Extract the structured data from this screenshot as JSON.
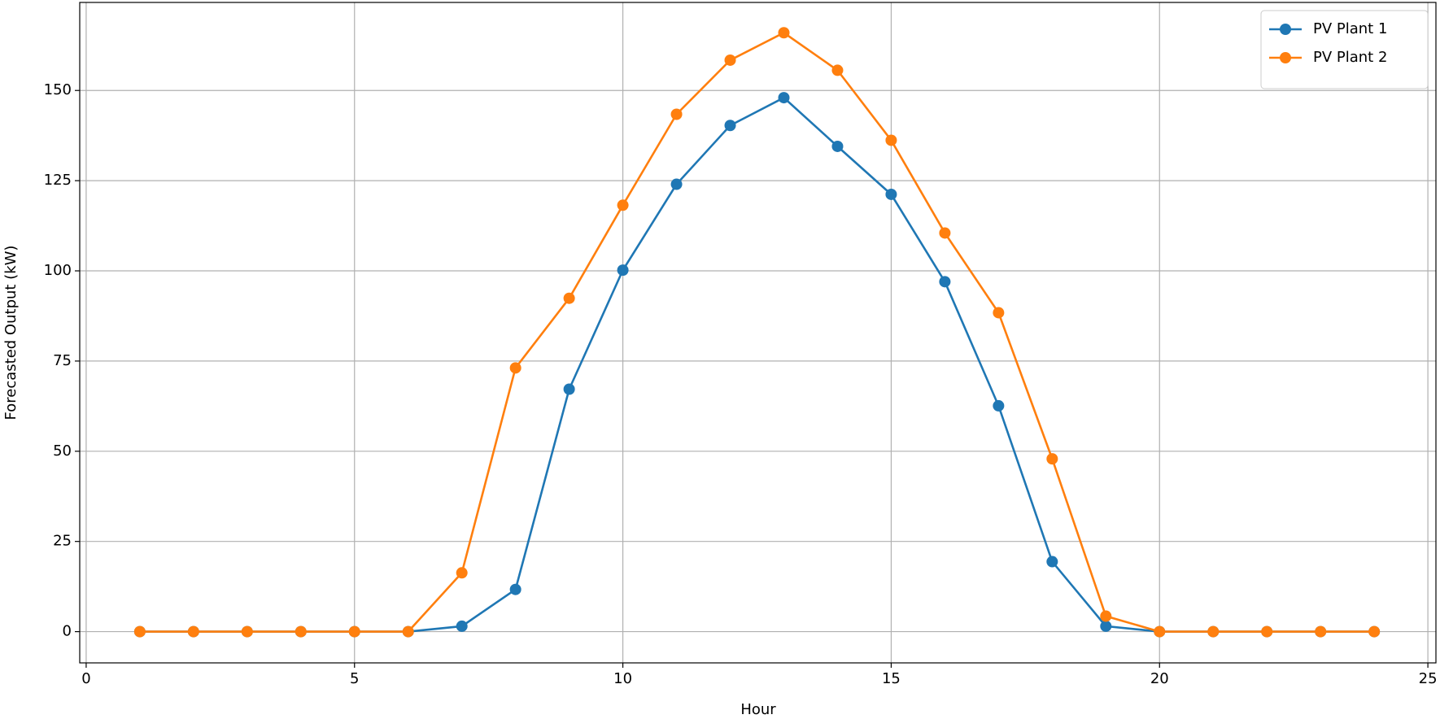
{
  "chart_data": {
    "type": "line",
    "x": [
      1,
      2,
      3,
      4,
      5,
      6,
      7,
      8,
      9,
      10,
      11,
      12,
      13,
      14,
      15,
      16,
      17,
      18,
      19,
      20,
      21,
      22,
      23,
      24
    ],
    "series": [
      {
        "name": "PV Plant 1",
        "color": "#1f77b4",
        "values": [
          0,
          0,
          0,
          0,
          0,
          0,
          1.5,
          11.7,
          67.2,
          100.2,
          124,
          140.3,
          148,
          134.5,
          121.2,
          97,
          62.6,
          19.4,
          1.5,
          0,
          0,
          0,
          0,
          0
        ]
      },
      {
        "name": "PV Plant 2",
        "color": "#ff7f0e",
        "values": [
          0,
          0,
          0,
          0,
          0,
          0,
          16.3,
          73.1,
          92.4,
          118.2,
          143.4,
          158.4,
          166,
          155.6,
          136.2,
          110.5,
          88.4,
          47.9,
          4.3,
          0,
          0,
          0,
          0,
          0
        ]
      }
    ],
    "xlabel": "Hour",
    "ylabel": "Forecasted Output (kW)",
    "xlim": [
      -0.12,
      25.15
    ],
    "ylim": [
      -8.66,
      174.4
    ],
    "xticks": [
      0,
      5,
      10,
      15,
      20,
      25
    ],
    "yticks": [
      0,
      25,
      50,
      75,
      100,
      125,
      150
    ],
    "grid": true,
    "legend": "upper right"
  }
}
